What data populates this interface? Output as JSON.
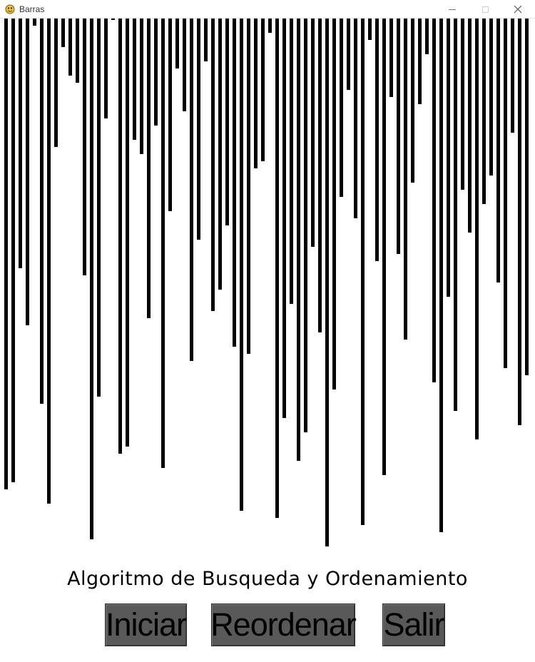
{
  "window": {
    "title": "Barras",
    "icon": "pygame-snake-icon",
    "controls": [
      "minimize-icon",
      "maximize-icon",
      "close-icon"
    ]
  },
  "heading": "Algoritmo de Busqueda y Ordenamiento",
  "buttons": {
    "start": "Iniciar",
    "shuffle": "Reordenar",
    "exit": "Salir"
  },
  "colors": {
    "background": "#ffffff",
    "bar": "#000000",
    "button": "#595959"
  },
  "chart_data": {
    "type": "bar",
    "values": [
      660,
      650,
      350,
      430,
      10,
      540,
      680,
      180,
      40,
      80,
      90,
      360,
      730,
      530,
      140,
      0,
      610,
      600,
      170,
      190,
      420,
      150,
      630,
      270,
      70,
      130,
      480,
      310,
      60,
      410,
      380,
      290,
      460,
      690,
      470,
      210,
      200,
      20,
      700,
      560,
      400,
      620,
      580,
      320,
      440,
      740,
      520,
      250,
      100,
      280,
      710,
      30,
      340,
      640,
      110,
      330,
      450,
      230,
      120,
      50,
      510,
      720,
      390,
      550,
      240,
      300,
      590,
      260,
      220,
      370,
      490,
      160,
      570,
      500
    ]
  }
}
